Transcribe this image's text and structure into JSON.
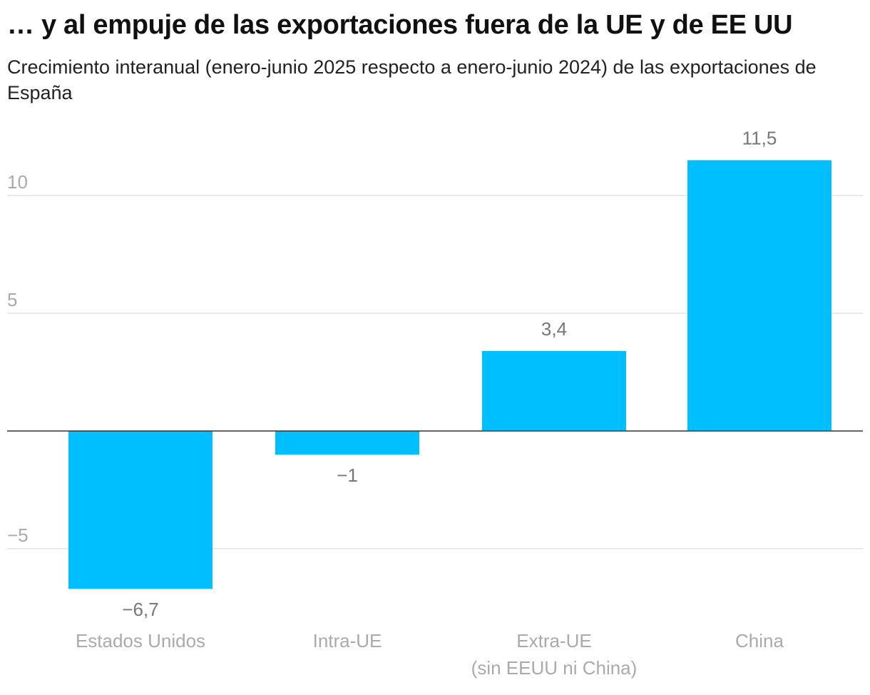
{
  "title": "… y al empuje de las exportaciones fuera de la UE y de EE UU",
  "subtitle": "Crecimiento interanual (enero-junio 2025 respecto a enero-junio 2024) de las exportaciones de España",
  "chart_data": {
    "type": "bar",
    "title": "… y al empuje de las exportaciones fuera de la UE y de EE UU",
    "subtitle": "Crecimiento interanual (enero-junio 2025 respecto a enero-junio 2024) de las exportaciones de España",
    "categories": [
      [
        "Estados Unidos"
      ],
      [
        "Intra-UE"
      ],
      [
        "Extra-UE",
        "(sin EEUU ni China)"
      ],
      [
        "China"
      ]
    ],
    "values": [
      -6.7,
      -1,
      3.4,
      11.5
    ],
    "data_labels": [
      "−6,7",
      "−1",
      "3,4",
      "11,5"
    ],
    "yticks": [
      -5,
      5,
      10
    ],
    "ytick_labels": [
      "−5",
      "5",
      "10"
    ],
    "ylim": [
      -7.5,
      12.5
    ],
    "grid": true,
    "bar_color": "#00bfff",
    "xlabel": "",
    "ylabel": ""
  }
}
